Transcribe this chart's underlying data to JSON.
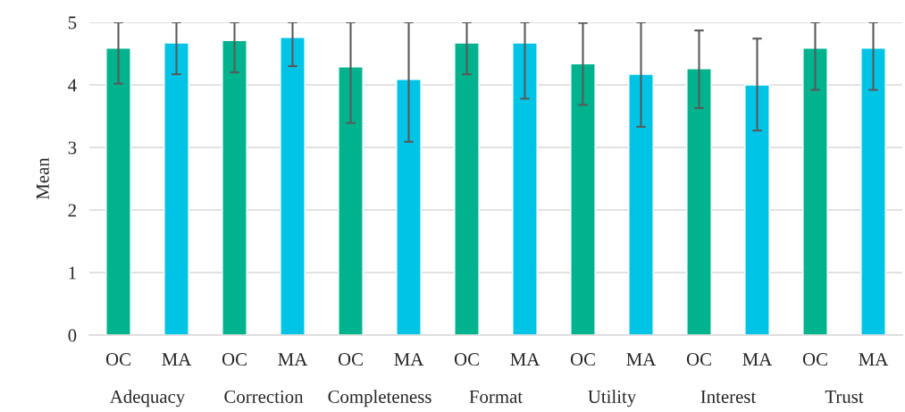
{
  "chart_data": {
    "type": "bar",
    "ylabel": "Mean",
    "categories": [
      "OC",
      "MA",
      "OC",
      "MA",
      "OC",
      "MA",
      "OC",
      "MA",
      "OC",
      "MA",
      "OC",
      "MA",
      "OC",
      "MA"
    ],
    "values": [
      4.59,
      4.67,
      4.71,
      4.76,
      4.29,
      4.09,
      4.67,
      4.67,
      4.34,
      4.17,
      4.26,
      4.0,
      4.59,
      4.59
    ],
    "colors": [
      "#00b38f",
      "#00c4e6",
      "#00b38f",
      "#00c4e6",
      "#00b38f",
      "#00c4e6",
      "#00b38f",
      "#00c4e6",
      "#00b38f",
      "#00c4e6",
      "#00b38f",
      "#00c4e6",
      "#00b38f",
      "#00c4e6"
    ],
    "errors": [
      [
        4.02,
        5
      ],
      [
        4.17,
        5
      ],
      [
        4.2,
        5
      ],
      [
        4.3,
        5
      ],
      [
        3.39,
        5
      ],
      [
        3.09,
        5
      ],
      [
        4.17,
        5
      ],
      [
        3.78,
        5
      ],
      [
        3.68,
        4.99
      ],
      [
        3.33,
        5
      ],
      [
        3.63,
        4.87
      ],
      [
        3.27,
        4.74
      ],
      [
        3.92,
        5
      ],
      [
        3.92,
        5
      ]
    ],
    "annotations": [
      "Adequacy",
      "Correction",
      "Completeness",
      "Format",
      "Utility",
      "Interest",
      "Trust"
    ],
    "ylim": [
      0,
      5
    ],
    "yticks": [
      0,
      1,
      2,
      3,
      4,
      5
    ],
    "grid": "y",
    "legend": false
  }
}
